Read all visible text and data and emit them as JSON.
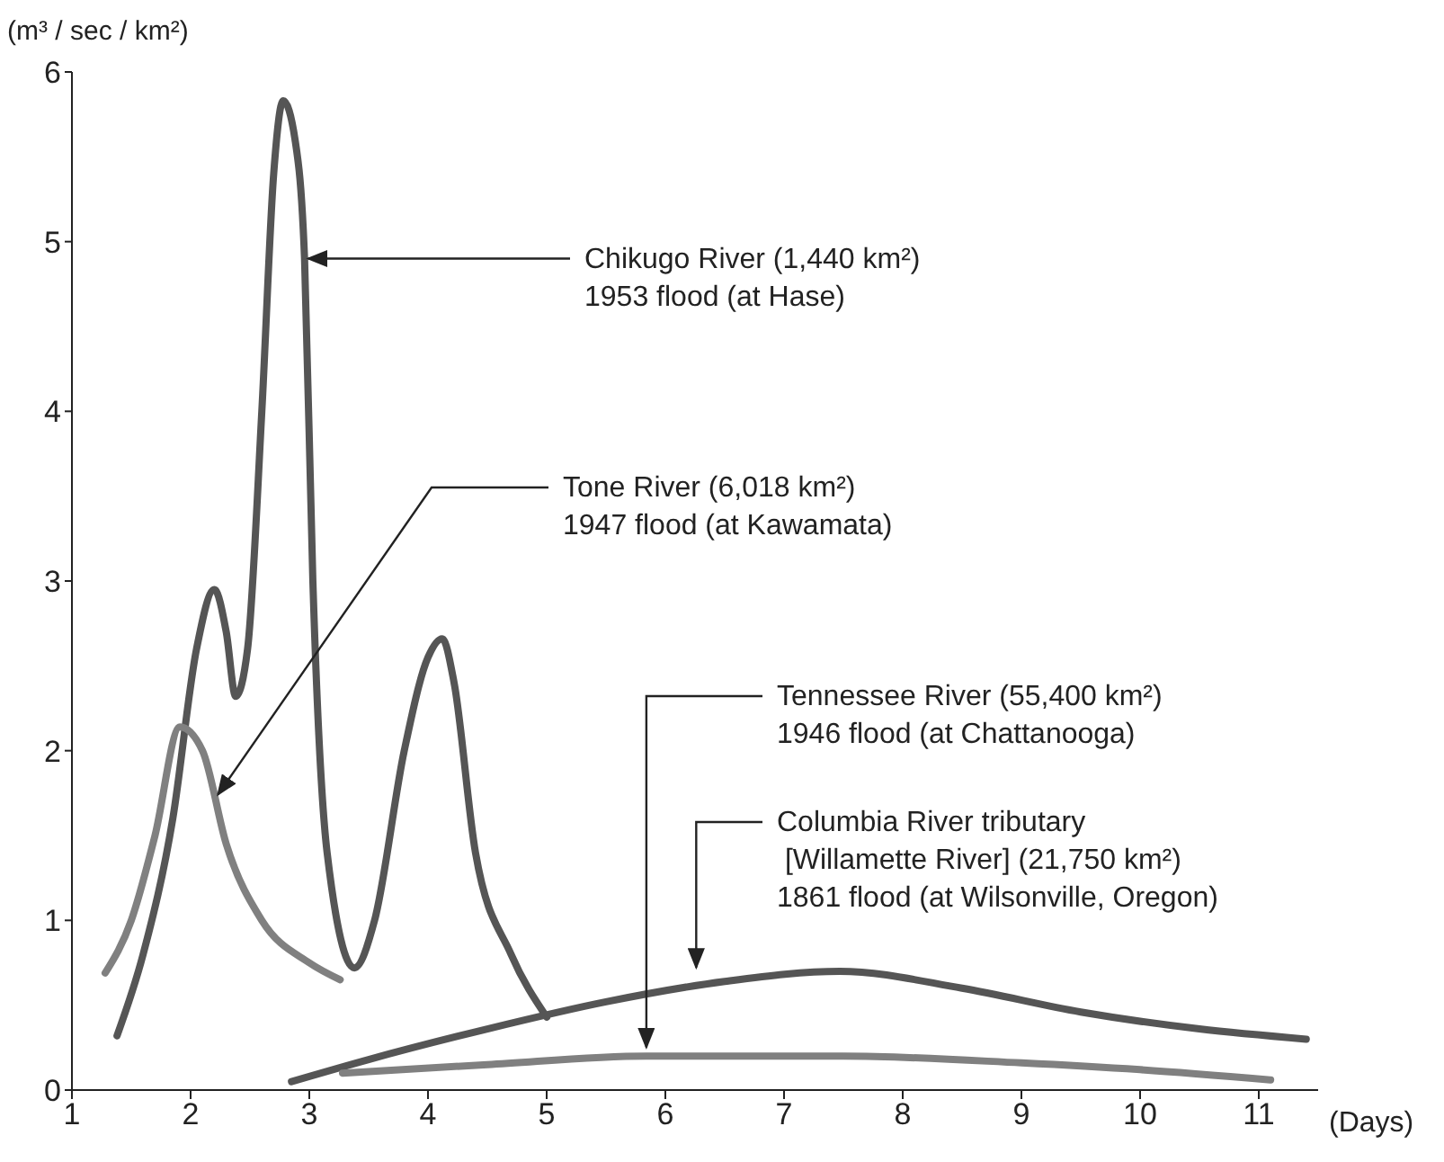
{
  "chart_data": {
    "type": "line",
    "ylabel": "(m³ / sec / km²)",
    "xlabel": "(Days)",
    "xlim": [
      1,
      11.5
    ],
    "xticks": [
      1,
      2,
      3,
      4,
      5,
      6,
      7,
      8,
      9,
      10,
      11
    ],
    "ylim": [
      0,
      6
    ],
    "yticks": [
      0,
      1,
      2,
      3,
      4,
      5,
      6
    ],
    "grid": false,
    "legend": false,
    "marker": "none",
    "line_style": "solid",
    "series": [
      {
        "color": "#555555",
        "x": [
          1.38,
          1.6,
          1.85,
          2.05,
          2.2,
          2.3,
          2.38,
          2.48,
          2.6,
          2.7,
          2.78,
          2.88,
          2.96,
          3.03,
          3.15,
          3.38,
          3.55,
          3.8,
          4.0,
          4.12,
          4.22,
          4.4,
          4.7,
          5.0
        ],
        "values": [
          0.32,
          0.8,
          1.6,
          2.6,
          2.95,
          2.7,
          2.32,
          2.6,
          4.0,
          5.4,
          5.83,
          5.6,
          4.9,
          3.0,
          1.4,
          0.72,
          1.0,
          2.0,
          2.55,
          2.66,
          2.4,
          1.4,
          0.8,
          0.43
        ]
      },
      {
        "color": "#808080",
        "x": [
          1.28,
          1.5,
          1.7,
          1.91,
          2.1,
          2.3,
          2.6,
          3.0,
          3.26
        ],
        "values": [
          0.69,
          1.0,
          1.5,
          2.14,
          2.0,
          1.45,
          1.0,
          0.75,
          0.65
        ]
      },
      {
        "color": "#555555",
        "x": [
          2.85,
          3.5,
          4.5,
          5.5,
          6.5,
          7.47,
          8.5,
          9.5,
          10.5,
          11.4
        ],
        "values": [
          0.05,
          0.18,
          0.36,
          0.52,
          0.64,
          0.7,
          0.6,
          0.46,
          0.36,
          0.3
        ]
      },
      {
        "color": "#808080",
        "x": [
          3.28,
          4.5,
          5.84,
          7.5,
          9,
          10,
          11.1
        ],
        "values": [
          0.1,
          0.15,
          0.2,
          0.2,
          0.16,
          0.12,
          0.06
        ]
      }
    ],
    "annotations": [
      {
        "text": "Chikugo River (1,440 km²)\n1953 flood (at Hase)",
        "x": 2.96,
        "y": 4.9
      },
      {
        "text": "Tone River (6,018 km²)\n1947 flood (at Kawamata)",
        "x": 2.2,
        "y": 1.72
      },
      {
        "text": "Tennessee River (55,400 km²)\n1946 flood (at Chattanooga)",
        "x": 5.84,
        "y": 0.22
      },
      {
        "text": "Columbia River tributary\n [Willamette River] (21,750 km²)\n1861 flood (at Wilsonville, Oregon)",
        "x": 6.26,
        "y": 0.69
      }
    ]
  }
}
